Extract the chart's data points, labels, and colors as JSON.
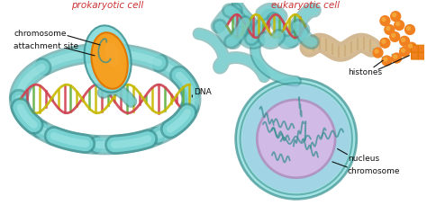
{
  "title_left": "prokaryotic cell",
  "title_right": "eukaryotic cell",
  "labels": {
    "chromosome_left": "chromosome",
    "attachment_site": "attachment site",
    "dna": "DNA",
    "chromosome_right": "chromosome",
    "nucleus": "nucleus",
    "histones": "histones"
  },
  "colors": {
    "background": "#ffffff",
    "teal_light": "#7dd8d8",
    "teal_lighter": "#a8e8e8",
    "teal_mid": "#55b8c0",
    "teal_dark": "#3a9090",
    "teal_blue": "#5ab5c8",
    "cell_outer": "#88d0d8",
    "orange_cell": "#f5a020",
    "orange_dark": "#e07800",
    "nucleus_fill": "#d8b8e8",
    "nucleus_border": "#b090c0",
    "nucleus_blue": "#a0c8e8",
    "dna_yellow": "#c8b800",
    "dna_pink": "#d04050",
    "dna_green": "#60b040",
    "histone_orange": "#f08020",
    "histone_light": "#f5b040",
    "text_color": "#222222",
    "title_color": "#cc3333",
    "label_color": "#111111",
    "white": "#ffffff",
    "tan": "#c8a878",
    "tan_light": "#ddc090"
  },
  "figsize": [
    4.74,
    2.48
  ],
  "dpi": 100
}
